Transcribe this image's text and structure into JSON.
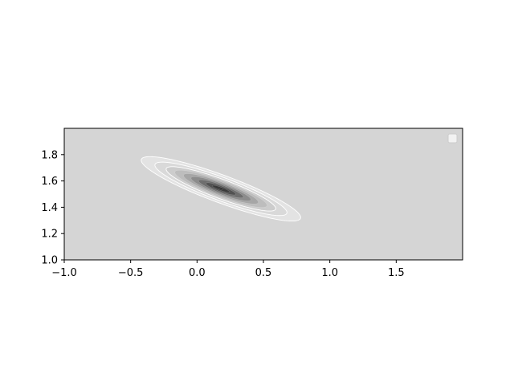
{
  "chart_data": {
    "type": "contour",
    "title": "",
    "xlabel": "",
    "ylabel": "",
    "xlim": [
      -1.0,
      2.0
    ],
    "ylim": [
      1.0,
      2.0
    ],
    "x_ticks": [
      -1.0,
      -0.5,
      0.0,
      0.5,
      1.0,
      1.5
    ],
    "x_tick_labels": [
      "−1.0",
      "−0.5",
      "0.0",
      "0.5",
      "1.0",
      "1.5"
    ],
    "y_ticks": [
      1.0,
      1.2,
      1.4,
      1.6,
      1.8
    ],
    "y_tick_labels": [
      "1.0",
      "1.2",
      "1.4",
      "1.6",
      "1.8"
    ],
    "grid": false,
    "legend": {
      "placement": "top-right",
      "entries": []
    },
    "background_color": "#d5d5d5",
    "contour_line_color": "#ffffff",
    "distribution": {
      "center": [
        0.18,
        1.54
      ],
      "major_axis_angle_deg": -20.5,
      "levels": [
        {
          "a": 0.64,
          "b": 0.105,
          "fill": "#e3e3e3"
        },
        {
          "a": 0.53,
          "b": 0.088,
          "fill": "#d9d9d9"
        },
        {
          "a": 0.44,
          "b": 0.073,
          "fill": "#cccccc"
        },
        {
          "a": 0.37,
          "b": 0.061,
          "fill": "#bdbdbd"
        },
        {
          "a": 0.3,
          "b": 0.05,
          "fill": "#a6a6a6"
        },
        {
          "a": 0.24,
          "b": 0.04,
          "fill": "#8c8c8c"
        },
        {
          "a": 0.18,
          "b": 0.03,
          "fill": "#6e6e6e"
        },
        {
          "a": 0.12,
          "b": 0.021,
          "fill": "#525252"
        },
        {
          "a": 0.07,
          "b": 0.012,
          "fill": "#3a3a3a"
        },
        {
          "a": 0.018,
          "b": 0.004,
          "fill": "#1a1a1a"
        }
      ]
    }
  }
}
